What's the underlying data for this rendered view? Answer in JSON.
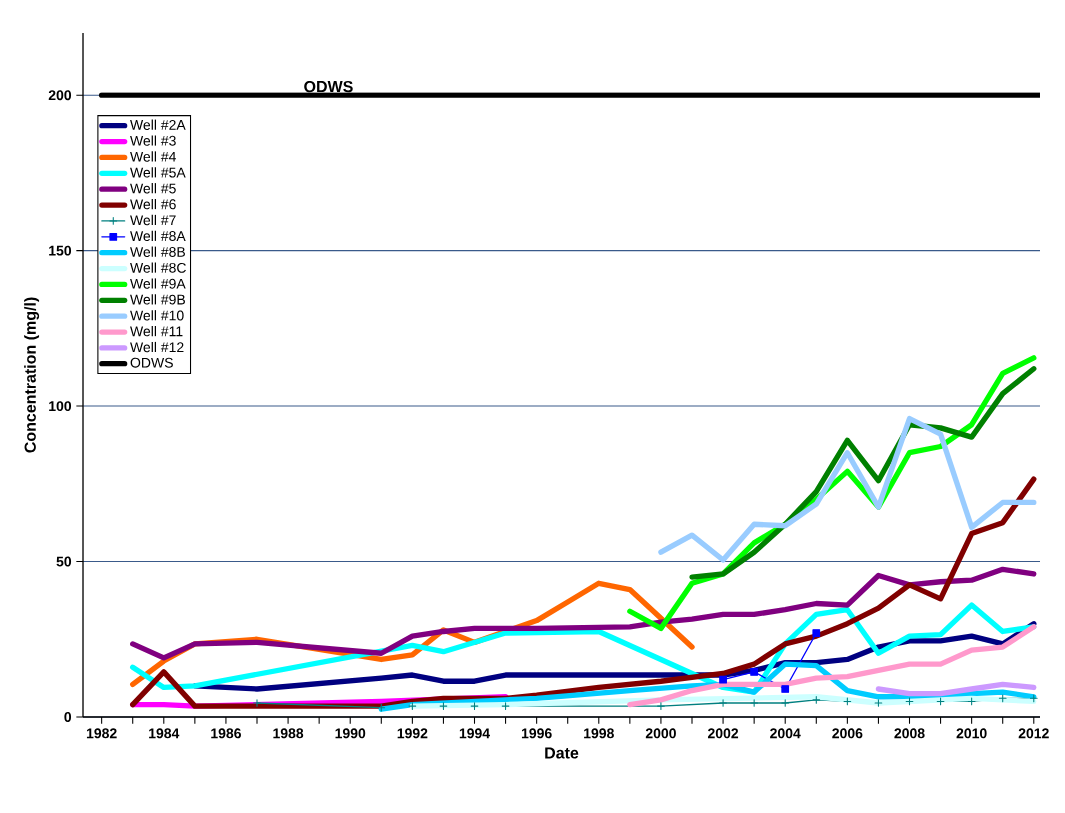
{
  "chart_data": {
    "type": "line",
    "xlabel": "Date",
    "ylabel": "Concentration  (mg/l)",
    "xlim": [
      1981.4,
      2012.2
    ],
    "ylim": [
      0,
      220
    ],
    "xticks": [
      1982,
      {
        "value": 1983,
        "label": null
      },
      1984,
      {
        "value": 1985,
        "label": null
      },
      1986,
      {
        "value": 1987,
        "label": null
      },
      1988,
      {
        "value": 1989,
        "label": null
      },
      1990,
      {
        "value": 1991,
        "label": null
      },
      1992,
      {
        "value": 1993,
        "label": null
      },
      1994,
      {
        "value": 1995,
        "label": null
      },
      1996,
      {
        "value": 1997,
        "label": null
      },
      1998,
      {
        "value": 1999,
        "label": null
      },
      2000,
      {
        "value": 2001,
        "label": null
      },
      2002,
      {
        "value": 2003,
        "label": null
      },
      2004,
      {
        "value": 2005,
        "label": null
      },
      2006,
      {
        "value": 2007,
        "label": null
      },
      2008,
      {
        "value": 2009,
        "label": null
      },
      2010,
      {
        "value": 2011,
        "label": null
      },
      2012
    ],
    "yticks": [
      0,
      50,
      100,
      150,
      200
    ],
    "grid": "y",
    "legend": "top left",
    "annotations": [
      {
        "text": "ODWS",
        "x": 1989.3,
        "y": 200
      }
    ],
    "series": [
      {
        "name": "Well #2A",
        "color": "#000080",
        "x": [
          1985,
          1987,
          1991,
          1992,
          1993,
          1994,
          1995,
          2001,
          2002,
          2003,
          2004,
          2005,
          2006,
          2007,
          2008,
          2009,
          2010,
          2011,
          2012
        ],
        "values": [
          10,
          9,
          12.5,
          13.5,
          11.5,
          11.5,
          13.5,
          13.5,
          13.5,
          15,
          17.5,
          17.5,
          18.5,
          22.5,
          24.5,
          24.5,
          26,
          23.5,
          30
        ]
      },
      {
        "name": "Well #3",
        "color": "#ff00ff",
        "x": [
          1983,
          1984,
          1985,
          1991,
          1995
        ],
        "values": [
          4,
          4,
          3.5,
          5,
          6.5
        ]
      },
      {
        "name": "Well #4",
        "color": "#ff6600",
        "x": [
          1983,
          1984,
          1985,
          1987,
          1991,
          1992,
          1993,
          1994,
          1996,
          1997,
          1998,
          1999,
          2001
        ],
        "values": [
          10.5,
          18,
          23.5,
          25,
          18.5,
          20,
          28,
          24,
          31,
          37,
          43,
          41,
          22.5
        ]
      },
      {
        "name": "Well #5A",
        "color": "#00ffff",
        "x": [
          1983,
          1984,
          1985,
          1992,
          1993,
          1995,
          1998,
          2001,
          2002,
          2003,
          2004,
          2005,
          2006,
          2007,
          2008,
          2009,
          2010,
          2011,
          2012
        ],
        "values": [
          16,
          9.5,
          10,
          23,
          21,
          27,
          27.5,
          14,
          9.5,
          8,
          23.5,
          33,
          34.5,
          20.5,
          26,
          26.5,
          36,
          27.5,
          29
        ]
      },
      {
        "name": "Well #5",
        "color": "#800080",
        "x": [
          1983,
          1984,
          1985,
          1987,
          1991,
          1992,
          1993,
          1994,
          1995,
          1996,
          1999,
          2000,
          2001,
          2002,
          2003,
          2004,
          2005,
          2006,
          2007,
          2008,
          2009,
          2010,
          2011,
          2012
        ],
        "values": [
          23.5,
          19,
          23.5,
          24,
          20.5,
          26,
          27.5,
          28.5,
          28.5,
          28.5,
          29,
          30.5,
          31.5,
          33,
          33,
          34.5,
          36.5,
          36,
          45.5,
          42.5,
          43.5,
          44,
          47.5,
          46
        ]
      },
      {
        "name": "Well #6",
        "color": "#800000",
        "x": [
          1983,
          1984,
          1985,
          1987,
          1991,
          1992,
          1993,
          1994,
          1995,
          1996,
          1998,
          2000,
          2002,
          2003,
          2004,
          2005,
          2006,
          2007,
          2008,
          2009,
          2010,
          2011,
          2012
        ],
        "values": [
          4,
          14.5,
          3.5,
          3.5,
          3.5,
          5,
          6,
          6,
          6,
          7,
          9.5,
          11.5,
          14,
          17,
          23.5,
          26,
          30,
          35,
          42.5,
          38,
          59,
          62.5,
          76.5
        ]
      },
      {
        "name": "Well #7",
        "color": "#008080",
        "marker": "cross",
        "x": [
          1987,
          1991,
          1992,
          1993,
          1994,
          1995,
          2000,
          2002,
          2003,
          2004,
          2005,
          2006,
          2007,
          2008,
          2009,
          2010,
          2011,
          2012
        ],
        "values": [
          4.5,
          3,
          3.5,
          3.5,
          3.5,
          3.5,
          3.5,
          4.5,
          4.5,
          4.5,
          5.5,
          5,
          4.5,
          5,
          5,
          5,
          6,
          6
        ]
      },
      {
        "name": "Well #8A",
        "color": "#0000ff",
        "marker": "square",
        "x": [
          2002,
          2003,
          2004,
          2005
        ],
        "values": [
          12,
          14.5,
          9,
          27
        ]
      },
      {
        "name": "Well #8B",
        "color": "#00ccff",
        "x": [
          1991,
          1992,
          1996,
          1999,
          2001,
          2002,
          2003,
          2004,
          2005,
          2006,
          2007,
          2008,
          2009,
          2010,
          2011,
          2012
        ],
        "values": [
          2.5,
          4,
          6,
          8.5,
          10,
          10.5,
          8,
          17,
          16.5,
          8.5,
          6.5,
          6.5,
          6.5,
          7.5,
          8,
          6.5
        ]
      },
      {
        "name": "Well #8C",
        "color": "#ccffff",
        "x": [
          1992,
          1995,
          2000,
          2005,
          2007,
          2010,
          2012
        ],
        "values": [
          3.5,
          4,
          5.5,
          6.5,
          4.5,
          6,
          5
        ]
      },
      {
        "name": "Well #9A",
        "color": "#00ff00",
        "x": [
          1999,
          2000,
          2001,
          2002,
          2003,
          2004,
          2005,
          2006,
          2007,
          2008,
          2009,
          2010,
          2011,
          2012
        ],
        "values": [
          34,
          28.5,
          43,
          46,
          56,
          62,
          70,
          79,
          67.5,
          85,
          87,
          94,
          110.5,
          115.5
        ]
      },
      {
        "name": "Well #9B",
        "color": "#008000",
        "x": [
          2001,
          2002,
          2003,
          2004,
          2005,
          2006,
          2007,
          2008,
          2009,
          2010,
          2011,
          2012
        ],
        "values": [
          45,
          46,
          53,
          62,
          72.5,
          89,
          76,
          94,
          93,
          90,
          104,
          112
        ]
      },
      {
        "name": "Well #10",
        "color": "#99ccff",
        "x": [
          2000,
          2001,
          2002,
          2003,
          2004,
          2005,
          2006,
          2007,
          2008,
          2009,
          2010,
          2011,
          2012
        ],
        "values": [
          53,
          58.5,
          50.5,
          62,
          61.5,
          68.5,
          85,
          67.5,
          96,
          91,
          61,
          69,
          69
        ]
      },
      {
        "name": "Well #11",
        "color": "#ff99cc",
        "x": [
          1999,
          2000,
          2001,
          2002,
          2003,
          2004,
          2005,
          2006,
          2007,
          2008,
          2009,
          2010,
          2011,
          2012
        ],
        "values": [
          4,
          5.5,
          8.5,
          10.5,
          10.5,
          10.5,
          12.5,
          13,
          15,
          17,
          17,
          21.5,
          22.5,
          29
        ]
      },
      {
        "name": "Well #12",
        "color": "#cc99ff",
        "x": [
          2007,
          2008,
          2009,
          2010,
          2011,
          2012
        ],
        "values": [
          9,
          7.5,
          7.5,
          9,
          10.5,
          9.5
        ]
      },
      {
        "name": "ODWS",
        "color": "#000000",
        "x": [
          1982,
          2012.2
        ],
        "values": [
          200,
          200
        ]
      }
    ]
  }
}
